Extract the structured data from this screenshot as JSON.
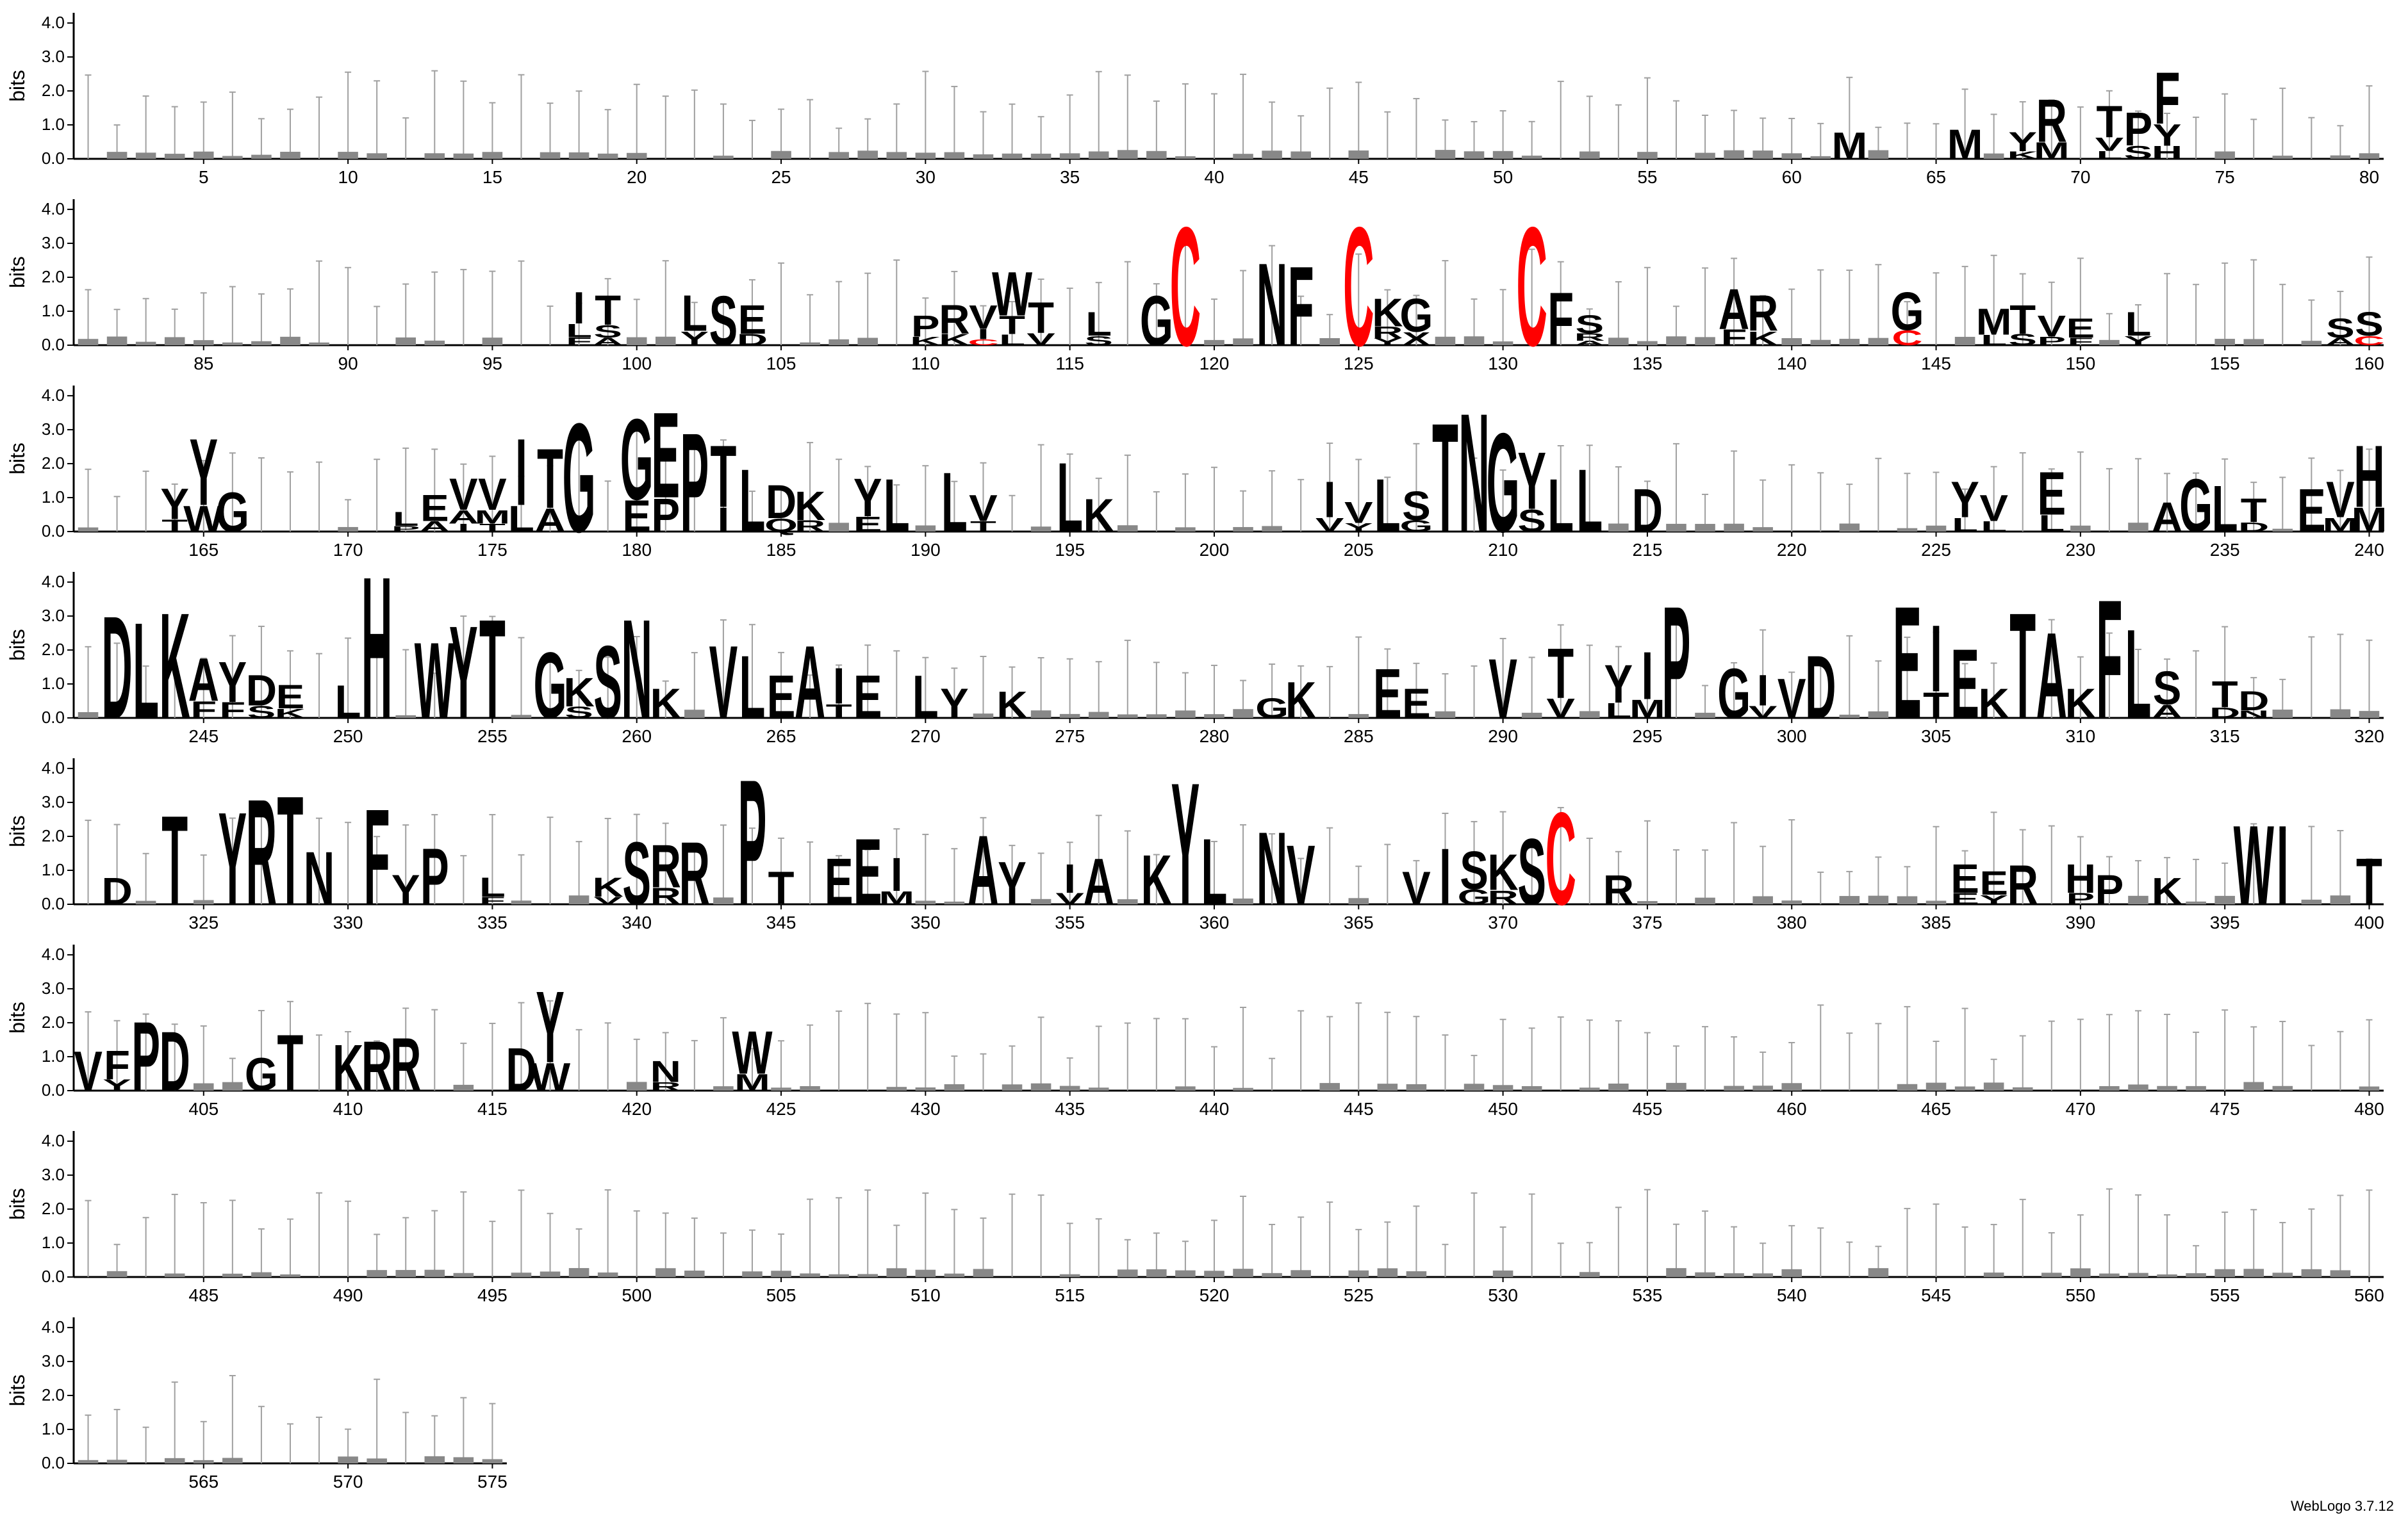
{
  "footer": {
    "credit": "WebLogo 3.7.12"
  },
  "chart_data": {
    "type": "sequence_logo",
    "ylabel": "bits",
    "ylim": [
      0,
      4.3
    ],
    "y_ticks": [
      "0.0",
      "1.0",
      "2.0",
      "3.0",
      "4.0"
    ],
    "positions_per_row": 80,
    "first_position": 1,
    "last_position": 575,
    "colors": {
      "default": "#000000",
      "cysteine": "#ff0000",
      "error_bar": "#a0a0a0",
      "minor_residue": "#888888"
    },
    "columns": [
      {
        "pos": 62,
        "bits": 0.8,
        "residues": "M"
      },
      {
        "pos": 66,
        "bits": 0.9,
        "residues": "M"
      },
      {
        "pos": 68,
        "bits": 0.8,
        "residues": "YK"
      },
      {
        "pos": 69,
        "bits": 1.8,
        "residues": "RM"
      },
      {
        "pos": 71,
        "bits": 1.6,
        "residues": "TVL"
      },
      {
        "pos": 72,
        "bits": 1.4,
        "residues": "PS"
      },
      {
        "pos": 73,
        "bits": 2.6,
        "residues": "FYH"
      },
      {
        "pos": 98,
        "bits": 1.6,
        "residues": "ILF"
      },
      {
        "pos": 99,
        "bits": 1.5,
        "residues": "TSA"
      },
      {
        "pos": 102,
        "bits": 1.5,
        "residues": "LY"
      },
      {
        "pos": 103,
        "bits": 1.5,
        "residues": "S"
      },
      {
        "pos": 104,
        "bits": 1.2,
        "residues": "ED"
      },
      {
        "pos": 110,
        "bits": 0.9,
        "residues": "PK"
      },
      {
        "pos": 111,
        "bits": 1.2,
        "residues": "RK"
      },
      {
        "pos": 112,
        "bits": 1.2,
        "residues": "VIC"
      },
      {
        "pos": 113,
        "bits": 2.2,
        "residues": "WTL"
      },
      {
        "pos": 114,
        "bits": 1.3,
        "residues": "TV"
      },
      {
        "pos": 116,
        "bits": 1.0,
        "residues": "LS"
      },
      {
        "pos": 118,
        "bits": 1.5,
        "residues": "G"
      },
      {
        "pos": 119,
        "bits": 3.6,
        "residues": "C"
      },
      {
        "pos": 122,
        "bits": 2.5,
        "residues": "N"
      },
      {
        "pos": 123,
        "bits": 2.4,
        "residues": "F"
      },
      {
        "pos": 125,
        "bits": 3.6,
        "residues": "C"
      },
      {
        "pos": 126,
        "bits": 1.4,
        "residues": "KRY"
      },
      {
        "pos": 127,
        "bits": 1.4,
        "residues": "GX"
      },
      {
        "pos": 131,
        "bits": 3.6,
        "residues": "C"
      },
      {
        "pos": 132,
        "bits": 1.6,
        "residues": "F"
      },
      {
        "pos": 133,
        "bits": 0.9,
        "residues": "SRA"
      },
      {
        "pos": 138,
        "bits": 1.7,
        "residues": "AF"
      },
      {
        "pos": 139,
        "bits": 1.5,
        "residues": "RK"
      },
      {
        "pos": 144,
        "bits": 1.6,
        "residues": "GC"
      },
      {
        "pos": 147,
        "bits": 1.1,
        "residues": "ML"
      },
      {
        "pos": 148,
        "bits": 1.2,
        "residues": "TS"
      },
      {
        "pos": 149,
        "bits": 0.9,
        "residues": "VP"
      },
      {
        "pos": 150,
        "bits": 0.8,
        "residues": "EF"
      },
      {
        "pos": 152,
        "bits": 1.0,
        "residues": "LY"
      },
      {
        "pos": 159,
        "bits": 0.8,
        "residues": "SA"
      },
      {
        "pos": 160,
        "bits": 1.0,
        "residues": "SC"
      },
      {
        "pos": 164,
        "bits": 1.3,
        "residues": "YT"
      },
      {
        "pos": 165,
        "bits": 2.8,
        "residues": "YW"
      },
      {
        "pos": 166,
        "bits": 1.2,
        "residues": "G"
      },
      {
        "pos": 172,
        "bits": 0.6,
        "residues": "LP"
      },
      {
        "pos": 173,
        "bits": 1.1,
        "residues": "EA"
      },
      {
        "pos": 174,
        "bits": 1.6,
        "residues": "VAI"
      },
      {
        "pos": 175,
        "bits": 1.6,
        "residues": "VMT"
      },
      {
        "pos": 176,
        "bits": 2.8,
        "residues": "IL"
      },
      {
        "pos": 177,
        "bits": 2.5,
        "residues": "TA"
      },
      {
        "pos": 178,
        "bits": 3.3,
        "residues": "G"
      },
      {
        "pos": 180,
        "bits": 3.4,
        "residues": "GE"
      },
      {
        "pos": 181,
        "bits": 3.6,
        "residues": "EP"
      },
      {
        "pos": 182,
        "bits": 3.0,
        "residues": "P"
      },
      {
        "pos": 183,
        "bits": 2.6,
        "residues": "TI"
      },
      {
        "pos": 184,
        "bits": 1.9,
        "residues": "L"
      },
      {
        "pos": 185,
        "bits": 1.4,
        "residues": "DQ"
      },
      {
        "pos": 186,
        "bits": 1.2,
        "residues": "KR"
      },
      {
        "pos": 188,
        "bits": 1.6,
        "residues": "YE"
      },
      {
        "pos": 189,
        "bits": 1.6,
        "residues": "L"
      },
      {
        "pos": 191,
        "bits": 1.8,
        "residues": "L"
      },
      {
        "pos": 192,
        "bits": 1.1,
        "residues": "VT"
      },
      {
        "pos": 195,
        "bits": 2.1,
        "residues": "L"
      },
      {
        "pos": 196,
        "bits": 1.0,
        "residues": "K"
      },
      {
        "pos": 204,
        "bits": 1.5,
        "residues": "IV"
      },
      {
        "pos": 205,
        "bits": 0.9,
        "residues": "VY"
      },
      {
        "pos": 206,
        "bits": 1.6,
        "residues": "L"
      },
      {
        "pos": 207,
        "bits": 1.2,
        "residues": "SG"
      },
      {
        "pos": 208,
        "bits": 3.3,
        "residues": "T"
      },
      {
        "pos": 209,
        "bits": 3.6,
        "residues": "N"
      },
      {
        "pos": 210,
        "bits": 3.0,
        "residues": "G"
      },
      {
        "pos": 211,
        "bits": 2.4,
        "residues": "YS"
      },
      {
        "pos": 212,
        "bits": 1.6,
        "residues": "L"
      },
      {
        "pos": 213,
        "bits": 1.9,
        "residues": "L"
      },
      {
        "pos": 215,
        "bits": 1.3,
        "residues": "D"
      },
      {
        "pos": 226,
        "bits": 1.5,
        "residues": "YL"
      },
      {
        "pos": 227,
        "bits": 1.1,
        "residues": "VL"
      },
      {
        "pos": 229,
        "bits": 1.8,
        "residues": "EL"
      },
      {
        "pos": 233,
        "bits": 0.9,
        "residues": "A"
      },
      {
        "pos": 234,
        "bits": 1.6,
        "residues": "G"
      },
      {
        "pos": 235,
        "bits": 1.4,
        "residues": "L"
      },
      {
        "pos": 236,
        "bits": 1.0,
        "residues": "TD"
      },
      {
        "pos": 238,
        "bits": 1.3,
        "residues": "E"
      },
      {
        "pos": 239,
        "bits": 1.5,
        "residues": "VM"
      },
      {
        "pos": 240,
        "bits": 2.6,
        "residues": "HM"
      },
      {
        "pos": 242,
        "bits": 3.1,
        "residues": "D"
      },
      {
        "pos": 243,
        "bits": 2.9,
        "residues": "L"
      },
      {
        "pos": 244,
        "bits": 3.2,
        "residues": "K"
      },
      {
        "pos": 245,
        "bits": 1.8,
        "residues": "AF"
      },
      {
        "pos": 246,
        "bits": 1.7,
        "residues": "YF"
      },
      {
        "pos": 247,
        "bits": 1.3,
        "residues": "DS"
      },
      {
        "pos": 248,
        "bits": 1.0,
        "residues": "EK"
      },
      {
        "pos": 250,
        "bits": 1.0,
        "residues": "L"
      },
      {
        "pos": 251,
        "bits": 4.3,
        "residues": "H"
      },
      {
        "pos": 253,
        "bits": 2.3,
        "residues": "W"
      },
      {
        "pos": 254,
        "bits": 2.8,
        "residues": "Y"
      },
      {
        "pos": 255,
        "bits": 3.0,
        "residues": "T"
      },
      {
        "pos": 257,
        "bits": 2.0,
        "residues": "G"
      },
      {
        "pos": 258,
        "bits": 1.2,
        "residues": "KS"
      },
      {
        "pos": 259,
        "bits": 2.2,
        "residues": "S"
      },
      {
        "pos": 260,
        "bits": 3.0,
        "residues": "N"
      },
      {
        "pos": 261,
        "bits": 0.9,
        "residues": "K"
      },
      {
        "pos": 263,
        "bits": 2.2,
        "residues": "V"
      },
      {
        "pos": 264,
        "bits": 1.9,
        "residues": "L"
      },
      {
        "pos": 265,
        "bits": 1.3,
        "residues": "E"
      },
      {
        "pos": 266,
        "bits": 2.2,
        "residues": "A"
      },
      {
        "pos": 267,
        "bits": 1.5,
        "residues": "IT"
      },
      {
        "pos": 268,
        "bits": 1.3,
        "residues": "E"
      },
      {
        "pos": 270,
        "bits": 1.3,
        "residues": "L"
      },
      {
        "pos": 271,
        "bits": 0.9,
        "residues": "Y"
      },
      {
        "pos": 273,
        "bits": 0.8,
        "residues": "K"
      },
      {
        "pos": 282,
        "bits": 0.6,
        "residues": "G"
      },
      {
        "pos": 283,
        "bits": 1.1,
        "residues": "K"
      },
      {
        "pos": 286,
        "bits": 1.5,
        "residues": "E"
      },
      {
        "pos": 287,
        "bits": 0.9,
        "residues": "E"
      },
      {
        "pos": 290,
        "bits": 1.8,
        "residues": "V"
      },
      {
        "pos": 292,
        "bits": 2.1,
        "residues": "TV"
      },
      {
        "pos": 294,
        "bits": 1.6,
        "residues": "YL"
      },
      {
        "pos": 295,
        "bits": 2.0,
        "residues": "IM"
      },
      {
        "pos": 296,
        "bits": 3.4,
        "residues": "P"
      },
      {
        "pos": 298,
        "bits": 1.5,
        "residues": "G"
      },
      {
        "pos": 299,
        "bits": 1.3,
        "residues": "IV"
      },
      {
        "pos": 300,
        "bits": 1.2,
        "residues": "V"
      },
      {
        "pos": 301,
        "bits": 1.9,
        "residues": "D"
      },
      {
        "pos": 304,
        "bits": 3.4,
        "residues": "E"
      },
      {
        "pos": 305,
        "bits": 2.8,
        "residues": "IT"
      },
      {
        "pos": 306,
        "bits": 2.1,
        "residues": "E"
      },
      {
        "pos": 307,
        "bits": 0.9,
        "residues": "K"
      },
      {
        "pos": 308,
        "bits": 3.2,
        "residues": "T"
      },
      {
        "pos": 309,
        "bits": 2.6,
        "residues": "A"
      },
      {
        "pos": 310,
        "bits": 0.9,
        "residues": "K"
      },
      {
        "pos": 311,
        "bits": 3.6,
        "residues": "F"
      },
      {
        "pos": 312,
        "bits": 2.7,
        "residues": "L"
      },
      {
        "pos": 313,
        "bits": 1.4,
        "residues": "SA"
      },
      {
        "pos": 315,
        "bits": 1.1,
        "residues": "TD"
      },
      {
        "pos": 316,
        "bits": 0.8,
        "residues": "DN"
      },
      {
        "pos": 322,
        "bits": 0.8,
        "residues": "D"
      },
      {
        "pos": 324,
        "bits": 2.7,
        "residues": "T"
      },
      {
        "pos": 326,
        "bits": 2.8,
        "residues": "Y"
      },
      {
        "pos": 327,
        "bits": 3.2,
        "residues": "R"
      },
      {
        "pos": 328,
        "bits": 3.3,
        "residues": "T"
      },
      {
        "pos": 329,
        "bits": 1.6,
        "residues": "N"
      },
      {
        "pos": 331,
        "bits": 2.9,
        "residues": "F"
      },
      {
        "pos": 332,
        "bits": 0.9,
        "residues": "Y"
      },
      {
        "pos": 333,
        "bits": 1.7,
        "residues": "P"
      },
      {
        "pos": 335,
        "bits": 0.8,
        "residues": "LF"
      },
      {
        "pos": 339,
        "bits": 0.8,
        "residues": "KV"
      },
      {
        "pos": 340,
        "bits": 1.9,
        "residues": "S"
      },
      {
        "pos": 341,
        "bits": 1.8,
        "residues": "RR"
      },
      {
        "pos": 342,
        "bits": 1.9,
        "residues": "R"
      },
      {
        "pos": 344,
        "bits": 3.8,
        "residues": "P"
      },
      {
        "pos": 345,
        "bits": 1.0,
        "residues": "T"
      },
      {
        "pos": 347,
        "bits": 1.4,
        "residues": "E"
      },
      {
        "pos": 348,
        "bits": 2.0,
        "residues": "E"
      },
      {
        "pos": 349,
        "bits": 1.4,
        "residues": "IM"
      },
      {
        "pos": 352,
        "bits": 2.1,
        "residues": "A"
      },
      {
        "pos": 353,
        "bits": 1.3,
        "residues": "Y"
      },
      {
        "pos": 355,
        "bits": 1.2,
        "residues": "IV"
      },
      {
        "pos": 356,
        "bits": 1.4,
        "residues": "A"
      },
      {
        "pos": 358,
        "bits": 1.5,
        "residues": "K"
      },
      {
        "pos": 359,
        "bits": 3.7,
        "residues": "Y"
      },
      {
        "pos": 360,
        "bits": 2.0,
        "residues": "L"
      },
      {
        "pos": 362,
        "bits": 2.2,
        "residues": "N"
      },
      {
        "pos": 363,
        "bits": 1.8,
        "residues": "V"
      },
      {
        "pos": 367,
        "bits": 1.0,
        "residues": "V"
      },
      {
        "pos": 368,
        "bits": 1.7,
        "residues": "I"
      },
      {
        "pos": 369,
        "bits": 1.6,
        "residues": "SG"
      },
      {
        "pos": 370,
        "bits": 1.5,
        "residues": "KR"
      },
      {
        "pos": 371,
        "bits": 2.0,
        "residues": "S"
      },
      {
        "pos": 372,
        "bits": 2.8,
        "residues": "C"
      },
      {
        "pos": 374,
        "bits": 0.9,
        "residues": "R"
      },
      {
        "pos": 386,
        "bits": 1.2,
        "residues": "EE"
      },
      {
        "pos": 387,
        "bits": 1.0,
        "residues": "EY"
      },
      {
        "pos": 388,
        "bits": 1.2,
        "residues": "R"
      },
      {
        "pos": 390,
        "bits": 1.2,
        "residues": "HP"
      },
      {
        "pos": 391,
        "bits": 0.9,
        "residues": "P"
      },
      {
        "pos": 393,
        "bits": 0.8,
        "residues": "K"
      },
      {
        "pos": 396,
        "bits": 2.4,
        "residues": "W"
      },
      {
        "pos": 397,
        "bits": 2.4,
        "residues": "I"
      },
      {
        "pos": 400,
        "bits": 1.4,
        "residues": "T"
      },
      {
        "pos": 401,
        "bits": 1.2,
        "residues": "V"
      },
      {
        "pos": 402,
        "bits": 1.2,
        "residues": "FY"
      },
      {
        "pos": 403,
        "bits": 2.1,
        "residues": "P"
      },
      {
        "pos": 404,
        "bits": 1.8,
        "residues": "D"
      },
      {
        "pos": 407,
        "bits": 1.0,
        "residues": "G"
      },
      {
        "pos": 408,
        "bits": 1.7,
        "residues": "T"
      },
      {
        "pos": 410,
        "bits": 1.4,
        "residues": "K"
      },
      {
        "pos": 411,
        "bits": 1.5,
        "residues": "R"
      },
      {
        "pos": 412,
        "bits": 1.6,
        "residues": "R"
      },
      {
        "pos": 416,
        "bits": 1.3,
        "residues": "D"
      },
      {
        "pos": 417,
        "bits": 3.0,
        "residues": "YW"
      },
      {
        "pos": 421,
        "bits": 0.9,
        "residues": "NR"
      },
      {
        "pos": 424,
        "bits": 1.8,
        "residues": "WM"
      }
    ]
  }
}
